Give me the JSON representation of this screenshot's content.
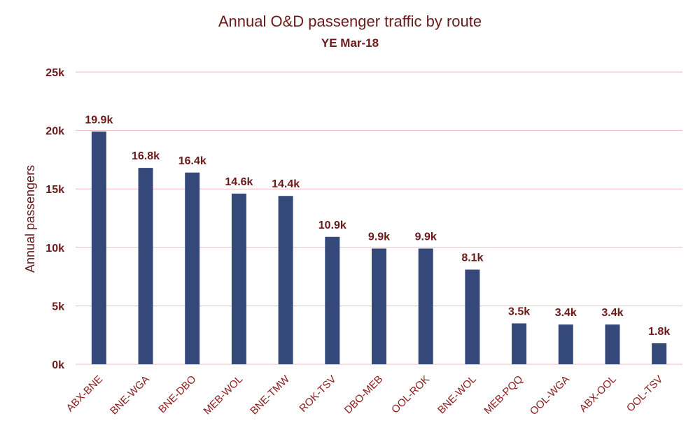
{
  "chart_data": {
    "type": "bar",
    "title": "Annual O&D passenger traffic by route",
    "subtitle": "YE Mar-18",
    "xlabel": "",
    "ylabel": "Annual passengers",
    "ylim": [
      0,
      25000
    ],
    "yticks": [
      0,
      5000,
      10000,
      15000,
      20000,
      25000
    ],
    "ytick_labels": [
      "0k",
      "5k",
      "10k",
      "15k",
      "20k",
      "25k"
    ],
    "grid": true,
    "bar_color": "#34497a",
    "grid_color": "#f2b8be",
    "categories": [
      "ABX-BNE",
      "BNE-WGA",
      "BNE-DBO",
      "MEB-WOL",
      "BNE-TMW",
      "ROK-TSV",
      "DBO-MEB",
      "OOL-ROK",
      "BNE-WOL",
      "MEB-PQQ",
      "OOL-WGA",
      "ABX-OOL",
      "OOL-TSV"
    ],
    "values": [
      19900,
      16800,
      16400,
      14600,
      14400,
      10900,
      9900,
      9900,
      8100,
      3500,
      3400,
      3400,
      1800
    ],
    "data_labels": [
      "19.9k",
      "16.8k",
      "16.4k",
      "14.6k",
      "14.4k",
      "10.9k",
      "9.9k",
      "9.9k",
      "8.1k",
      "3.5k",
      "3.4k",
      "3.4k",
      "1.8k"
    ]
  }
}
